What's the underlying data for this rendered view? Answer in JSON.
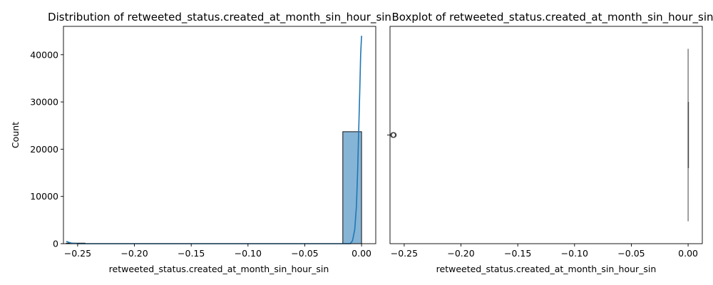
{
  "chart_data": [
    {
      "type": "histogram",
      "title": "Distribution of retweeted_status.created_at_month_sin_hour_sin",
      "xlabel": "retweeted_status.created_at_month_sin_hour_sin",
      "ylabel": "Count",
      "xlim": [
        -0.2625,
        0.0125
      ],
      "ylim": [
        0,
        46000
      ],
      "xticks": [
        -0.25,
        -0.2,
        -0.15,
        -0.1,
        -0.05,
        0.0
      ],
      "xtick_labels": [
        "−0.25",
        "−0.20",
        "−0.15",
        "−0.10",
        "−0.05",
        "0.00"
      ],
      "yticks": [
        0,
        10000,
        20000,
        30000,
        40000
      ],
      "ytick_labels": [
        "0",
        "10000",
        "20000",
        "30000",
        "40000"
      ],
      "bins": [
        {
          "x0": -0.26,
          "x1": -0.2435,
          "count": 110
        },
        {
          "x0": -0.0165,
          "x1": 0.0,
          "count": 23700
        }
      ],
      "kde": [
        [
          -0.26,
          500
        ],
        [
          -0.258,
          300
        ],
        [
          -0.255,
          100
        ],
        [
          -0.25,
          10
        ],
        [
          -0.24,
          0
        ],
        [
          -0.02,
          0
        ],
        [
          -0.01,
          0
        ],
        [
          -0.008,
          600
        ],
        [
          -0.006,
          3000
        ],
        [
          -0.0045,
          8000
        ],
        [
          -0.0035,
          15000
        ],
        [
          -0.0025,
          24000
        ],
        [
          -0.0015,
          33000
        ],
        [
          -0.0008,
          40000
        ],
        [
          0.0,
          44000
        ]
      ],
      "colors": {
        "bar": "#86b4d6",
        "bar_edge": "#111111",
        "line": "#1f77b4"
      }
    },
    {
      "type": "box",
      "title": "Boxplot of retweeted_status.created_at_month_sin_hour_sin",
      "xlabel": "retweeted_status.created_at_month_sin_hour_sin",
      "xlim": [
        -0.2625,
        0.0125
      ],
      "xticks": [
        -0.25,
        -0.2,
        -0.15,
        -0.1,
        -0.05,
        0.0
      ],
      "xtick_labels": [
        "−0.25",
        "−0.20",
        "−0.15",
        "−0.10",
        "−0.05",
        "0.00"
      ],
      "box": {
        "q1": 0.0,
        "median": 0.0,
        "q3": 0.0,
        "whisker_low": 0.0,
        "whisker_high": 0.0
      },
      "outliers": [
        -0.2599,
        -0.2597,
        -0.2595,
        -0.2593,
        -0.2591
      ],
      "colors": {
        "box": "#1f77b4",
        "line": "#444444",
        "flier": "#444444"
      }
    }
  ]
}
